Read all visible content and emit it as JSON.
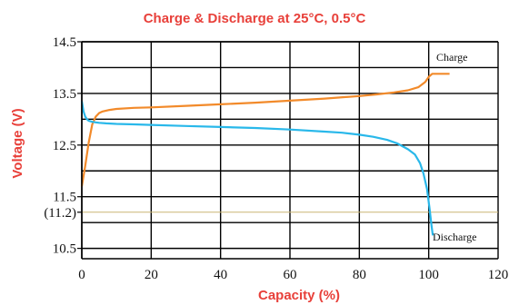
{
  "chart_data": {
    "type": "line",
    "title": "Charge & Discharge at 25°C, 0.5°C",
    "xlabel": "Capacity (%)",
    "ylabel": "Voltage (V)",
    "xlim": [
      0,
      120
    ],
    "ylim": [
      10.3,
      14.5
    ],
    "x_ticks": [
      0,
      20,
      40,
      60,
      80,
      100,
      120
    ],
    "x_tick_labels": [
      "0",
      "20",
      "40",
      "60",
      "80",
      "100",
      "120"
    ],
    "y_ticks": [
      14.5,
      13.5,
      12.5,
      11.5,
      11.2,
      10.5
    ],
    "y_tick_labels": [
      "14.5",
      "13.5",
      "12.5",
      "11.5",
      "(11.2)",
      "10.5"
    ],
    "grid": true,
    "reference_line": {
      "y": 11.2,
      "color": "#c9b574"
    },
    "series": [
      {
        "name": "Charge",
        "color": "#f28a2a",
        "x": [
          0,
          1,
          2,
          3,
          4,
          5,
          6,
          8,
          10,
          15,
          20,
          30,
          40,
          50,
          60,
          70,
          80,
          85,
          90,
          94,
          97,
          99,
          100,
          101,
          103,
          106
        ],
        "y": [
          11.7,
          12.1,
          12.55,
          12.9,
          13.05,
          13.12,
          13.15,
          13.18,
          13.2,
          13.22,
          13.23,
          13.26,
          13.29,
          13.32,
          13.36,
          13.4,
          13.45,
          13.48,
          13.52,
          13.56,
          13.62,
          13.72,
          13.82,
          13.88,
          13.88,
          13.88
        ]
      },
      {
        "name": "Discharge",
        "color": "#29b8ea",
        "x": [
          0,
          0.5,
          1,
          1.5,
          2,
          3,
          4,
          5,
          7,
          10,
          15,
          20,
          30,
          40,
          50,
          60,
          70,
          75,
          80,
          84,
          88,
          91,
          94,
          96,
          97.5,
          98.5,
          99.5,
          100.2,
          100.8,
          101.2
        ],
        "y": [
          13.35,
          13.15,
          13.05,
          13.0,
          12.97,
          12.95,
          12.94,
          12.93,
          12.92,
          12.91,
          12.9,
          12.89,
          12.87,
          12.85,
          12.83,
          12.8,
          12.76,
          12.74,
          12.7,
          12.66,
          12.6,
          12.53,
          12.42,
          12.32,
          12.15,
          11.95,
          11.65,
          11.3,
          10.95,
          10.75
        ]
      }
    ],
    "annotations": [
      {
        "text": "Charge",
        "series": "Charge"
      },
      {
        "text": "Discharge",
        "series": "Discharge"
      }
    ]
  }
}
